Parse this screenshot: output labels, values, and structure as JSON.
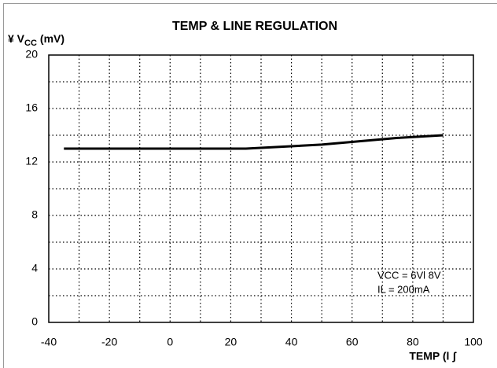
{
  "chart_data": {
    "type": "line",
    "title": "TEMP & LINE REGULATION",
    "y_label": {
      "main": "¥ V",
      "sub": "CC",
      "unit": "(mV)"
    },
    "x_label": "TEMP (l ʃ",
    "annotations": [
      "VCC = 6Vl 8V",
      "IL = 200mA"
    ],
    "x": [
      -35,
      25,
      50,
      75,
      90
    ],
    "series": [
      {
        "name": "ΔVCC",
        "color": "#000000",
        "values": [
          13.0,
          13.0,
          13.3,
          13.8,
          14.0
        ]
      }
    ],
    "xlim": [
      -40,
      100
    ],
    "xticks": [
      -40,
      -20,
      0,
      20,
      40,
      60,
      80,
      100
    ],
    "xminor": [
      -30,
      -10,
      10,
      30,
      50,
      70,
      90
    ],
    "ylim": [
      0,
      20
    ],
    "yticks": [
      0,
      4,
      8,
      12,
      16,
      20
    ],
    "yminor": [
      2,
      6,
      10,
      14,
      18
    ],
    "grid": true
  }
}
